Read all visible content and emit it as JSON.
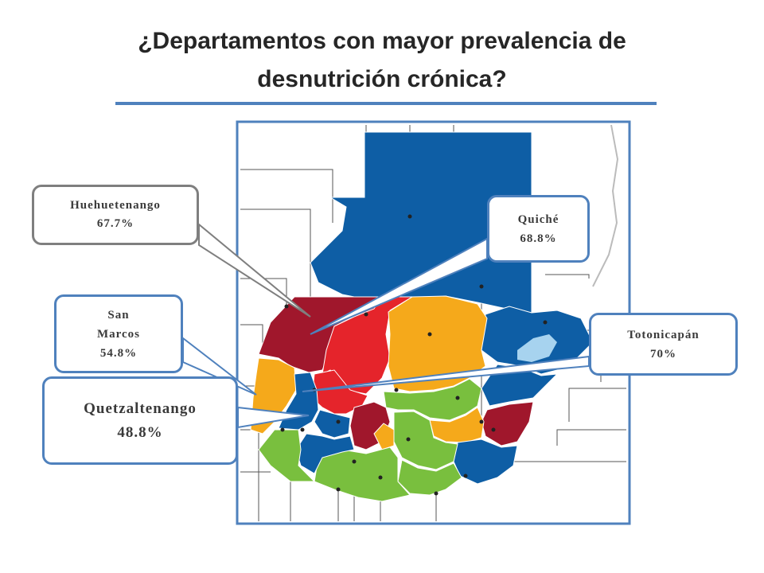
{
  "title": {
    "line1": "¿Departamentos con mayor prevalencia de",
    "line2": "desnutrición crónica?"
  },
  "colors": {
    "title_rule": "#4f81bd",
    "map_border": "#4f81bd",
    "dark_blue": "#0e5ea5",
    "dark_red": "#a0172c",
    "red": "#e5242b",
    "orange": "#f5a91b",
    "green": "#79bf3e",
    "lake": "#a7d3ef",
    "callout_gray": "#7f7f7f",
    "callout_blue": "#4f81bd"
  },
  "callouts": [
    {
      "id": "huehuetenango",
      "name": "Huehuetenango",
      "value": "67.7%"
    },
    {
      "id": "quiche",
      "name": "Quiché",
      "value": "68.8%"
    },
    {
      "id": "san_marcos",
      "name_line1": "San",
      "name_line2": "Marcos",
      "value": "54.8%"
    },
    {
      "id": "totonicapan",
      "name": "Totonicapán",
      "value": "70%"
    },
    {
      "id": "quetzaltenango",
      "name": "Quetzaltenango",
      "value": "48.8%"
    }
  ]
}
